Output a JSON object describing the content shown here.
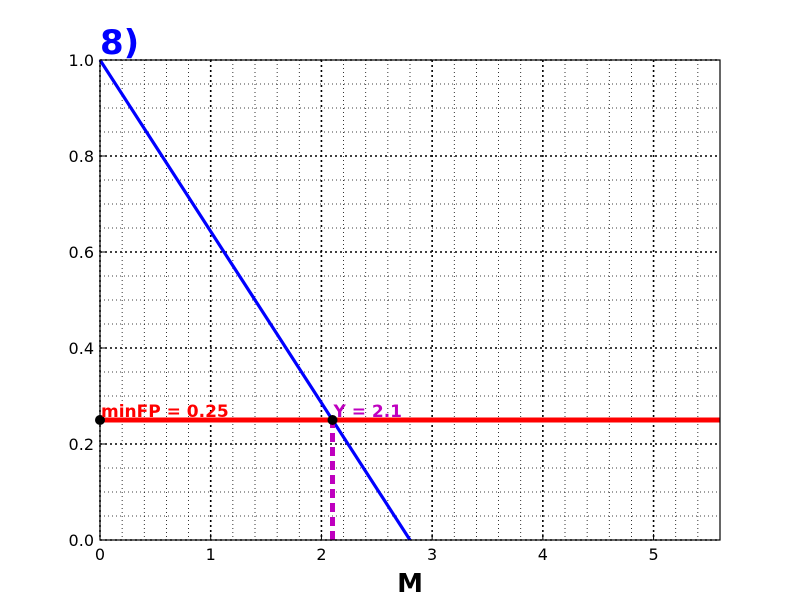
{
  "chart_data": {
    "type": "line",
    "title": "8)",
    "xlabel": "M",
    "ylabel": "",
    "xlim": [
      0,
      5.6
    ],
    "ylim": [
      0,
      1.0
    ],
    "x_ticks": [
      0,
      1,
      2,
      3,
      4,
      5
    ],
    "x_tick_labels": [
      "0",
      "1",
      "2",
      "3",
      "4",
      "5"
    ],
    "y_ticks": [
      0.0,
      0.2,
      0.4,
      0.6,
      0.8,
      1.0
    ],
    "y_tick_labels": [
      "0.0",
      "0.2",
      "0.4",
      "0.6",
      "0.8",
      "1.0"
    ],
    "x_minor_step": 0.2,
    "y_minor_step": 0.05,
    "grid": true,
    "series": [
      {
        "values": [
          [
            0,
            1.0
          ],
          [
            2.8,
            0.0
          ]
        ],
        "color": "#0000ff",
        "style": "solid"
      },
      {
        "values": [
          [
            0,
            0.25
          ],
          [
            5.6,
            0.25
          ]
        ],
        "color": "#ff0000",
        "style": "solid"
      },
      {
        "values": [
          [
            2.1,
            0.0
          ],
          [
            2.1,
            0.25
          ]
        ],
        "color": "#bf00bf",
        "style": "dashed"
      }
    ],
    "points": [
      {
        "x": 0,
        "y": 0.25,
        "color": "#000000"
      },
      {
        "x": 2.1,
        "y": 0.25,
        "color": "#000000"
      }
    ],
    "annotations": [
      {
        "text": "minFP = 0.25",
        "x": 0,
        "y": 0.25,
        "color": "#ff0000"
      },
      {
        "text": "Y = 2.1",
        "x": 2.1,
        "y": 0.25,
        "color": "#bf00bf"
      }
    ],
    "colors": {
      "title": "#0000ff"
    }
  }
}
